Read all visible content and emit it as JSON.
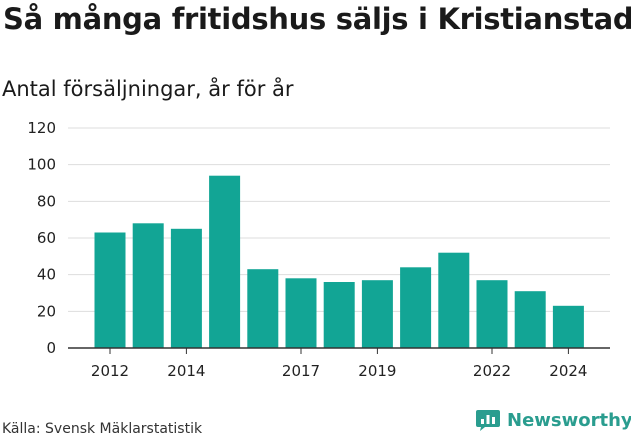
{
  "header": {
    "title": "Så många fritidshus säljs i Kristianstad",
    "subtitle": "Antal försäljningar, år för år"
  },
  "footer": {
    "source": "Källa: Svensk Mäklarstatistik",
    "brand": "Newsworthy"
  },
  "colors": {
    "bar": "#12a595",
    "brand": "#2a9d8f",
    "grid": "#dddddd",
    "axis": "#333333"
  },
  "chart_data": {
    "type": "bar",
    "title": "Så många fritidshus säljs i Kristianstad",
    "subtitle": "Antal försäljningar, år för år",
    "xlabel": "",
    "ylabel": "",
    "categories": [
      "2012",
      "2013",
      "2014",
      "2015",
      "2016",
      "2017",
      "2018",
      "2019",
      "2020",
      "2021",
      "2022",
      "2023",
      "2024"
    ],
    "x_tick_labels": [
      "2012",
      "2014",
      "2017",
      "2019",
      "2022",
      "2024"
    ],
    "values": [
      63,
      68,
      65,
      94,
      43,
      38,
      36,
      37,
      44,
      52,
      37,
      31,
      23
    ],
    "ylim": [
      0,
      120
    ],
    "yticks": [
      0,
      20,
      40,
      60,
      80,
      100,
      120
    ],
    "grid": true,
    "legend": "none"
  }
}
